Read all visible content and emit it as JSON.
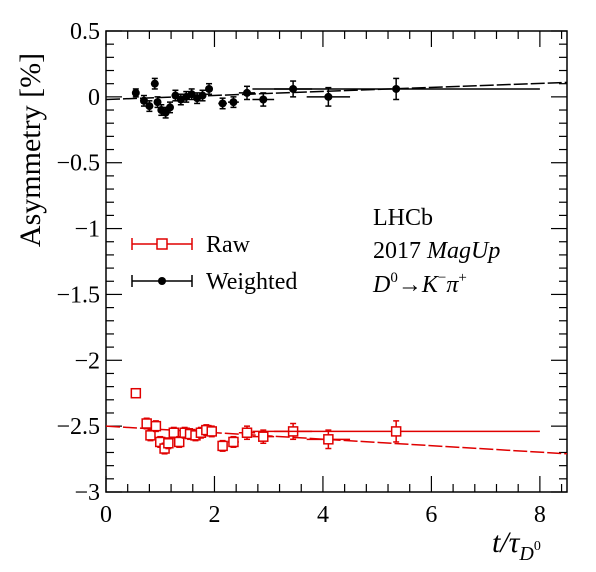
{
  "chart_data": {
    "type": "scatter",
    "ylabel": "Asymmetry [%]",
    "xlabel": {
      "main": "t/τ",
      "sub": "D",
      "subsup": "0"
    },
    "xlim": [
      0,
      8.5
    ],
    "ylim": [
      -3,
      0.5
    ],
    "x_ticks": [
      0,
      2,
      4,
      6,
      8
    ],
    "y_ticks": [
      -3,
      -2.5,
      -2,
      -1.5,
      -1,
      -0.5,
      0,
      0.5
    ],
    "y_tick_labels": [
      "−3",
      "−2.5",
      "−2",
      "−1.5",
      "−1",
      "−0.5",
      "0",
      "0.5"
    ],
    "annotations": {
      "experiment": "LHCb",
      "year": "2017",
      "polarity": "MagUp",
      "decay": {
        "d": "D",
        "d_sup": "0",
        "arrow": "→",
        "k": "K",
        "k_sup": "−",
        "pi": "π",
        "pi_sup": "+"
      }
    },
    "legend": {
      "position": "middle-left",
      "entries": [
        "Raw",
        "Weighted"
      ]
    },
    "series": [
      {
        "name": "Raw",
        "color": "#e00000",
        "marker": "open-square",
        "points": [
          {
            "x": 0.55,
            "y": -2.25,
            "xerr": 0.05,
            "yerr": 0.03
          },
          {
            "x": 0.75,
            "y": -2.48,
            "xerr": 0.05,
            "yerr": 0.04
          },
          {
            "x": 0.82,
            "y": -2.57,
            "xerr": 0.05,
            "yerr": 0.04
          },
          {
            "x": 0.92,
            "y": -2.5,
            "xerr": 0.05,
            "yerr": 0.04
          },
          {
            "x": 1.0,
            "y": -2.62,
            "xerr": 0.05,
            "yerr": 0.04
          },
          {
            "x": 1.08,
            "y": -2.67,
            "xerr": 0.05,
            "yerr": 0.04
          },
          {
            "x": 1.15,
            "y": -2.63,
            "xerr": 0.05,
            "yerr": 0.04
          },
          {
            "x": 1.25,
            "y": -2.55,
            "xerr": 0.05,
            "yerr": 0.04
          },
          {
            "x": 1.35,
            "y": -2.62,
            "xerr": 0.05,
            "yerr": 0.04
          },
          {
            "x": 1.45,
            "y": -2.55,
            "xerr": 0.05,
            "yerr": 0.04
          },
          {
            "x": 1.55,
            "y": -2.56,
            "xerr": 0.05,
            "yerr": 0.04
          },
          {
            "x": 1.65,
            "y": -2.57,
            "xerr": 0.05,
            "yerr": 0.04
          },
          {
            "x": 1.75,
            "y": -2.55,
            "xerr": 0.05,
            "yerr": 0.04
          },
          {
            "x": 1.85,
            "y": -2.53,
            "xerr": 0.05,
            "yerr": 0.04
          },
          {
            "x": 1.95,
            "y": -2.54,
            "xerr": 0.05,
            "yerr": 0.04
          },
          {
            "x": 2.15,
            "y": -2.65,
            "xerr": 0.08,
            "yerr": 0.04
          },
          {
            "x": 2.35,
            "y": -2.62,
            "xerr": 0.1,
            "yerr": 0.04
          },
          {
            "x": 2.6,
            "y": -2.55,
            "xerr": 0.15,
            "yerr": 0.05
          },
          {
            "x": 2.9,
            "y": -2.58,
            "xerr": 0.2,
            "yerr": 0.05
          },
          {
            "x": 3.45,
            "y": -2.54,
            "xerr": 0.35,
            "yerr": 0.06
          },
          {
            "x": 4.1,
            "y": -2.6,
            "xerr": 0.4,
            "yerr": 0.07
          },
          {
            "x": 5.35,
            "y": -2.54,
            "xerr": 2.65,
            "yerr": 0.08
          }
        ],
        "fit": {
          "x": [
            0,
            8.5
          ],
          "y": [
            -2.5,
            -2.71
          ]
        }
      },
      {
        "name": "Weighted",
        "color": "#000000",
        "marker": "filled-circle",
        "points": [
          {
            "x": 0.55,
            "y": 0.03,
            "xerr": 0.05,
            "yerr": 0.03
          },
          {
            "x": 0.7,
            "y": -0.03,
            "xerr": 0.05,
            "yerr": 0.04
          },
          {
            "x": 0.8,
            "y": -0.07,
            "xerr": 0.05,
            "yerr": 0.04
          },
          {
            "x": 0.9,
            "y": 0.1,
            "xerr": 0.05,
            "yerr": 0.04
          },
          {
            "x": 0.95,
            "y": -0.04,
            "xerr": 0.05,
            "yerr": 0.04
          },
          {
            "x": 1.02,
            "y": -0.1,
            "xerr": 0.05,
            "yerr": 0.04
          },
          {
            "x": 1.1,
            "y": -0.12,
            "xerr": 0.05,
            "yerr": 0.04
          },
          {
            "x": 1.18,
            "y": -0.08,
            "xerr": 0.05,
            "yerr": 0.04
          },
          {
            "x": 1.28,
            "y": 0.01,
            "xerr": 0.05,
            "yerr": 0.04
          },
          {
            "x": 1.38,
            "y": -0.02,
            "xerr": 0.05,
            "yerr": 0.04
          },
          {
            "x": 1.48,
            "y": 0.0,
            "xerr": 0.05,
            "yerr": 0.04
          },
          {
            "x": 1.58,
            "y": 0.02,
            "xerr": 0.05,
            "yerr": 0.04
          },
          {
            "x": 1.68,
            "y": -0.01,
            "xerr": 0.05,
            "yerr": 0.04
          },
          {
            "x": 1.78,
            "y": 0.01,
            "xerr": 0.05,
            "yerr": 0.04
          },
          {
            "x": 1.9,
            "y": 0.06,
            "xerr": 0.05,
            "yerr": 0.04
          },
          {
            "x": 2.15,
            "y": -0.05,
            "xerr": 0.08,
            "yerr": 0.04
          },
          {
            "x": 2.35,
            "y": -0.04,
            "xerr": 0.1,
            "yerr": 0.04
          },
          {
            "x": 2.6,
            "y": 0.03,
            "xerr": 0.15,
            "yerr": 0.05
          },
          {
            "x": 2.9,
            "y": -0.02,
            "xerr": 0.2,
            "yerr": 0.05
          },
          {
            "x": 3.45,
            "y": 0.06,
            "xerr": 0.35,
            "yerr": 0.06
          },
          {
            "x": 4.1,
            "y": 0.0,
            "xerr": 0.4,
            "yerr": 0.07
          },
          {
            "x": 5.35,
            "y": 0.06,
            "xerr": 2.65,
            "yerr": 0.08
          }
        ],
        "fit": {
          "x": [
            0,
            8.5
          ],
          "y": [
            -0.02,
            0.11
          ]
        }
      }
    ]
  }
}
